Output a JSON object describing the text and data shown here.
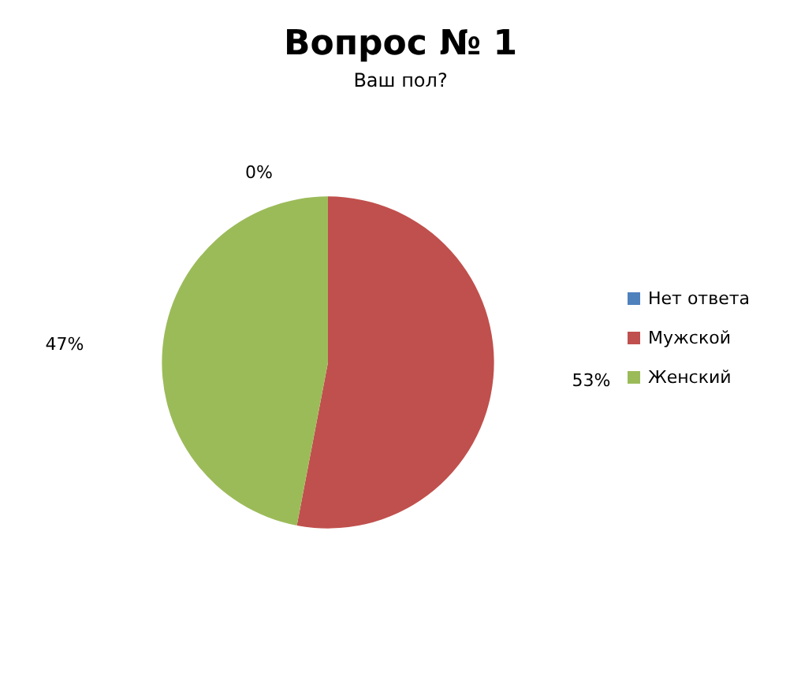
{
  "chart_data": {
    "type": "pie",
    "title": "Вопрос № 1",
    "subtitle": "Ваш пол?",
    "categories": [
      "Нет ответа",
      "Мужской",
      "Женский"
    ],
    "values": [
      0,
      53,
      47
    ],
    "colors": [
      "#4f81bd",
      "#c0504d",
      "#9bbb59"
    ],
    "value_labels": [
      "0%",
      "53%",
      "47%"
    ],
    "legend": "right"
  }
}
